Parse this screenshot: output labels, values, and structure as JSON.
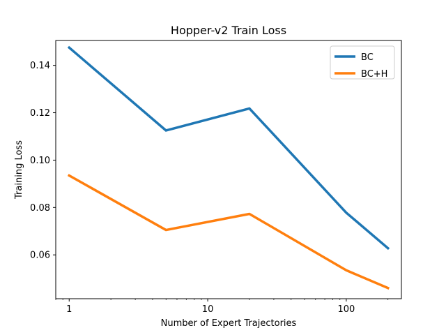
{
  "chart_data": {
    "type": "line",
    "title": "Hopper-v2 Train Loss",
    "xlabel": "Number of Expert Trajectories",
    "ylabel": "Training Loss",
    "xscale": "log",
    "xlim": [
      0.8,
      250
    ],
    "ylim": [
      0.0415,
      0.1505
    ],
    "x": [
      1,
      5,
      20,
      100,
      200
    ],
    "x_ticks": [
      1,
      10,
      100
    ],
    "x_tick_labels": [
      "1",
      "10",
      "100"
    ],
    "y_ticks": [
      0.06,
      0.08,
      0.1,
      0.12,
      0.14
    ],
    "y_tick_labels": [
      "0.06",
      "0.08",
      "0.10",
      "0.12",
      "0.14"
    ],
    "grid": false,
    "legend_position": "top-right",
    "series": [
      {
        "name": "BC",
        "color": "#1f77b4",
        "values": [
          0.1475,
          0.1125,
          0.1218,
          0.0778,
          0.0628
        ]
      },
      {
        "name": "BC+H",
        "color": "#ff7f0e",
        "values": [
          0.0935,
          0.0705,
          0.0773,
          0.0535,
          0.046
        ]
      }
    ]
  }
}
